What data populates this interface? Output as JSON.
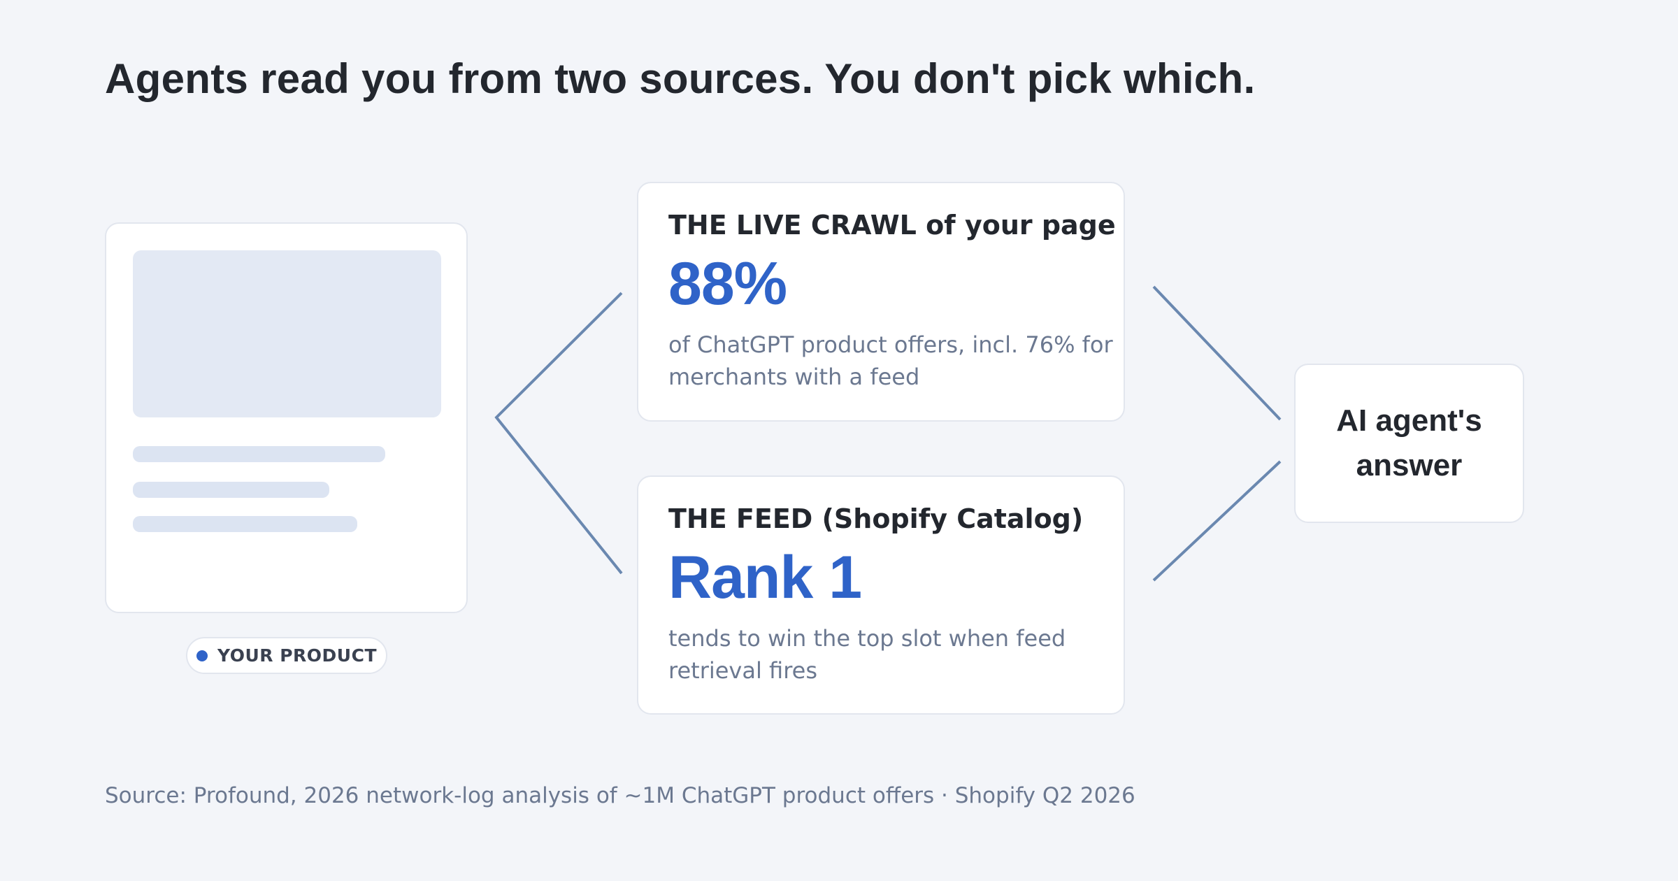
{
  "header": {
    "title": "Agents read you from two sources. You don't pick which."
  },
  "product": {
    "badge": "YOUR PRODUCT"
  },
  "sources": [
    {
      "heading": "THE LIVE CRAWL of your page",
      "stat": "88%",
      "description": "of ChatGPT product offers, incl. 76% for merchants with a feed"
    },
    {
      "heading": "THE FEED (Shopify Catalog)",
      "stat": "Rank 1",
      "description": "tends to win the top slot when feed retrieval fires"
    }
  ],
  "answer": {
    "label": "AI agent's answer"
  },
  "footer": {
    "source": "Source: Profound, 2026 network-log analysis of ~1M ChatGPT product offers · Shopify Q2 2026"
  }
}
